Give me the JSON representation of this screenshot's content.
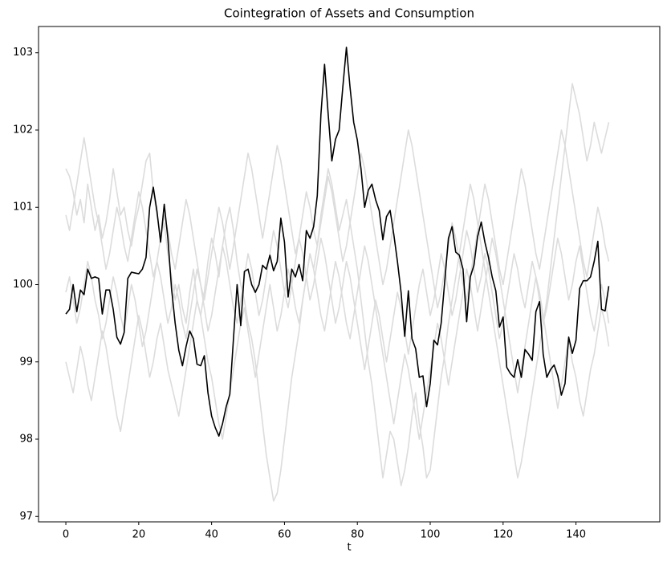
{
  "chart_data": {
    "type": "line",
    "title": "Cointegration of Assets and Consumption",
    "x_label": "t",
    "xlim": [
      -7.5,
      163
    ],
    "xticks": [
      0,
      20,
      40,
      60,
      80,
      100,
      120,
      140
    ],
    "ylim": [
      96.93,
      103.34
    ],
    "yticks": [
      97,
      98,
      99,
      100,
      101,
      102,
      103
    ],
    "x": [
      0,
      1,
      2,
      3,
      4,
      5,
      6,
      7,
      8,
      9,
      10,
      11,
      12,
      13,
      14,
      15,
      16,
      17,
      18,
      19,
      20,
      21,
      22,
      23,
      24,
      25,
      26,
      27,
      28,
      29,
      30,
      31,
      32,
      33,
      34,
      35,
      36,
      37,
      38,
      39,
      40,
      41,
      42,
      43,
      44,
      45,
      46,
      47,
      48,
      49,
      50,
      51,
      52,
      53,
      54,
      55,
      56,
      57,
      58,
      59,
      60,
      61,
      62,
      63,
      64,
      65,
      66,
      67,
      68,
      69,
      70,
      71,
      72,
      73,
      74,
      75,
      76,
      77,
      78,
      79,
      80,
      81,
      82,
      83,
      84,
      85,
      86,
      87,
      88,
      89,
      90,
      91,
      92,
      93,
      94,
      95,
      96,
      97,
      98,
      99,
      100,
      101,
      102,
      103,
      104,
      105,
      106,
      107,
      108,
      109,
      110,
      111,
      112,
      113,
      114,
      115,
      116,
      117,
      118,
      119,
      120,
      121,
      122,
      123,
      124,
      125,
      126,
      127,
      128,
      129,
      130,
      131,
      132,
      133,
      134,
      135,
      136,
      137,
      138,
      139,
      140,
      141,
      142,
      143,
      144,
      145,
      146,
      147,
      148,
      149
    ],
    "series": [
      {
        "color": "#dcdcdc",
        "values": [
          101.5,
          101.4,
          101.2,
          100.9,
          101.1,
          100.8,
          101.3,
          101.0,
          100.7,
          100.9,
          100.6,
          100.8,
          101.1,
          101.5,
          101.2,
          100.9,
          101.0,
          100.7,
          100.5,
          100.8,
          101.0,
          101.3,
          101.6,
          101.7,
          101.2,
          100.9,
          100.6,
          100.8,
          100.4,
          100.1,
          99.8,
          100.0,
          99.7,
          99.5,
          99.9,
          100.2,
          99.8,
          99.6,
          99.9,
          100.3,
          100.6,
          100.4,
          100.1,
          100.5,
          100.8,
          101.0,
          100.7,
          100.3,
          100.0,
          99.8,
          99.5,
          99.3,
          99.0,
          98.6,
          98.2,
          97.8,
          97.5,
          97.2,
          97.3,
          97.6,
          98.0,
          98.4,
          98.8,
          99.1,
          99.4,
          99.8,
          100.1,
          100.4,
          100.2,
          100.5,
          100.9,
          101.2,
          101.5,
          101.3,
          101.0,
          100.7,
          100.9,
          101.1,
          100.8,
          100.5,
          100.2,
          99.8,
          99.4,
          99.0,
          98.7,
          98.3,
          97.9,
          97.5,
          97.8,
          98.1,
          98.0,
          97.7,
          97.4,
          97.6,
          97.9,
          98.3,
          98.6,
          98.2,
          97.9,
          97.5,
          97.6,
          98.0,
          98.4,
          98.8,
          99.1,
          99.5,
          99.8,
          100.1,
          100.4,
          100.7,
          101.0,
          101.3,
          101.1,
          100.8,
          100.5,
          100.2,
          99.9,
          99.6,
          99.3,
          99.0,
          98.7,
          98.4,
          98.1,
          97.8,
          97.5,
          97.7,
          98.0,
          98.3,
          98.6,
          98.9,
          99.2,
          99.5,
          99.8,
          100.2,
          100.6,
          101.0,
          101.4,
          101.8,
          102.2,
          102.6,
          102.4,
          102.2,
          101.9,
          101.6,
          101.8,
          102.1,
          101.9,
          101.7,
          101.9,
          102.1
        ]
      },
      {
        "color": "#dcdcdc",
        "values": [
          99.0,
          98.8,
          98.6,
          98.9,
          99.2,
          99.0,
          98.7,
          98.5,
          98.8,
          99.1,
          99.4,
          99.2,
          98.9,
          98.6,
          98.3,
          98.1,
          98.4,
          98.7,
          99.0,
          99.3,
          99.6,
          99.4,
          99.1,
          98.8,
          99.0,
          99.3,
          99.5,
          99.2,
          98.9,
          98.7,
          98.5,
          98.3,
          98.6,
          98.9,
          99.2,
          99.5,
          99.8,
          99.6,
          99.3,
          99.0,
          98.8,
          98.5,
          98.2,
          98.0,
          98.3,
          98.6,
          98.9,
          99.2,
          99.5,
          99.7,
          99.4,
          99.1,
          98.8,
          99.1,
          99.4,
          99.7,
          100.0,
          99.7,
          99.4,
          99.6,
          99.9,
          100.2,
          100.0,
          99.7,
          99.5,
          99.8,
          100.1,
          100.4,
          100.2,
          99.9,
          99.6,
          99.4,
          99.7,
          100.0,
          100.3,
          100.1,
          99.8,
          99.5,
          99.3,
          99.6,
          99.9,
          100.2,
          100.5,
          100.3,
          100.0,
          99.7,
          99.4,
          99.1,
          98.8,
          98.5,
          98.2,
          98.5,
          98.8,
          99.1,
          98.9,
          98.6,
          98.3,
          98.0,
          98.3,
          98.6,
          98.9,
          99.2,
          99.5,
          99.3,
          99.0,
          98.7,
          99.0,
          99.3,
          99.6,
          99.9,
          100.2,
          100.0,
          99.7,
          99.4,
          99.7,
          100.0,
          100.3,
          100.6,
          100.4,
          100.1,
          99.8,
          99.5,
          99.2,
          98.9,
          98.6,
          98.9,
          99.2,
          99.5,
          99.8,
          100.1,
          99.9,
          99.6,
          99.3,
          99.0,
          98.7,
          98.4,
          98.7,
          99.0,
          99.3,
          99.0,
          98.8,
          98.5,
          98.3,
          98.6,
          98.9,
          99.1,
          99.4,
          99.7,
          99.5,
          99.2
        ]
      },
      {
        "color": "#dcdcdc",
        "values": [
          100.9,
          100.7,
          101.0,
          101.3,
          101.6,
          101.9,
          101.6,
          101.3,
          101.0,
          100.8,
          100.5,
          100.2,
          100.4,
          100.7,
          101.0,
          100.8,
          100.5,
          100.3,
          100.6,
          100.9,
          101.2,
          101.0,
          100.7,
          100.4,
          100.1,
          100.3,
          100.6,
          100.9,
          100.7,
          100.4,
          100.2,
          100.5,
          100.8,
          101.1,
          100.9,
          100.6,
          100.3,
          100.0,
          99.8,
          100.1,
          100.4,
          100.7,
          101.0,
          100.8,
          100.5,
          100.2,
          100.5,
          100.8,
          101.1,
          101.4,
          101.7,
          101.5,
          101.2,
          100.9,
          100.6,
          100.9,
          101.2,
          101.5,
          101.8,
          101.6,
          101.3,
          101.0,
          100.7,
          100.4,
          100.6,
          100.9,
          101.2,
          101.0,
          100.7,
          100.5,
          100.8,
          101.1,
          101.4,
          101.2,
          100.9,
          100.6,
          100.3,
          100.5,
          100.8,
          101.1,
          101.4,
          101.7,
          101.5,
          101.2,
          100.9,
          100.6,
          100.3,
          100.0,
          100.2,
          100.5,
          100.8,
          101.1,
          101.4,
          101.7,
          102.0,
          101.8,
          101.5,
          101.2,
          100.9,
          100.6,
          100.3,
          100.0,
          99.7,
          99.9,
          100.2,
          100.5,
          100.8,
          100.6,
          100.3,
          100.0,
          99.8,
          100.1,
          100.4,
          100.7,
          101.0,
          101.3,
          101.1,
          100.8,
          100.5,
          100.2,
          100.0,
          100.3,
          100.6,
          100.9,
          101.2,
          101.5,
          101.3,
          101.0,
          100.7,
          100.4,
          100.2,
          100.5,
          100.8,
          101.1,
          101.4,
          101.7,
          102.0,
          101.8,
          101.5,
          101.2,
          100.9,
          100.6,
          100.3,
          100.1,
          100.4,
          100.7,
          101.0,
          100.8,
          100.5,
          100.3
        ]
      },
      {
        "color": "#dcdcdc",
        "values": [
          99.9,
          100.1,
          99.8,
          99.5,
          99.7,
          100.0,
          100.3,
          100.1,
          99.8,
          99.6,
          99.3,
          99.5,
          99.8,
          100.1,
          99.9,
          99.6,
          99.4,
          99.7,
          100.0,
          99.8,
          99.5,
          99.2,
          99.4,
          99.7,
          100.0,
          100.3,
          100.1,
          99.8,
          99.5,
          99.7,
          100.0,
          99.8,
          99.5,
          99.3,
          99.6,
          99.9,
          100.2,
          100.0,
          99.7,
          99.4,
          99.6,
          99.9,
          100.2,
          100.5,
          100.3,
          100.0,
          99.7,
          99.5,
          99.8,
          100.1,
          100.4,
          100.2,
          99.9,
          99.6,
          99.8,
          100.1,
          100.4,
          100.7,
          100.5,
          100.2,
          99.9,
          99.7,
          100.0,
          100.3,
          100.6,
          100.4,
          100.1,
          99.8,
          100.0,
          100.3,
          100.6,
          100.4,
          100.1,
          99.8,
          99.5,
          99.7,
          100.0,
          100.3,
          100.1,
          99.8,
          99.5,
          99.2,
          98.9,
          99.2,
          99.5,
          99.8,
          99.6,
          99.3,
          99.0,
          99.3,
          99.6,
          99.9,
          99.7,
          99.4,
          99.1,
          99.4,
          99.7,
          100.0,
          100.2,
          99.9,
          99.6,
          99.8,
          100.1,
          100.4,
          100.2,
          99.9,
          99.6,
          99.8,
          100.1,
          100.4,
          100.7,
          100.5,
          100.2,
          99.9,
          100.1,
          100.4,
          100.2,
          99.9,
          99.6,
          99.3,
          99.5,
          99.8,
          100.1,
          100.4,
          100.2,
          99.9,
          99.7,
          100.0,
          100.3,
          100.1,
          99.8,
          99.5,
          99.7,
          100.0,
          100.3,
          100.6,
          100.4,
          100.1,
          99.8,
          100.0,
          100.3,
          100.5,
          100.2,
          99.9,
          99.6,
          99.4,
          99.7,
          100.0,
          99.8,
          99.5
        ]
      },
      {
        "color": "#000000",
        "values": [
          99.62,
          99.68,
          100.0,
          99.65,
          99.93,
          99.87,
          100.2,
          100.08,
          100.1,
          100.08,
          99.62,
          99.93,
          99.93,
          99.68,
          99.32,
          99.23,
          99.38,
          100.08,
          100.16,
          100.15,
          100.14,
          100.2,
          100.35,
          101.0,
          101.26,
          100.95,
          100.55,
          101.04,
          100.6,
          99.95,
          99.5,
          99.15,
          98.95,
          99.2,
          99.4,
          99.3,
          98.97,
          98.95,
          99.08,
          98.6,
          98.3,
          98.15,
          98.04,
          98.2,
          98.42,
          98.58,
          99.3,
          100.0,
          99.47,
          100.17,
          100.2,
          100.0,
          99.9,
          100.0,
          100.25,
          100.2,
          100.38,
          100.18,
          100.3,
          100.86,
          100.55,
          99.84,
          100.2,
          100.1,
          100.26,
          100.05,
          100.7,
          100.6,
          100.75,
          101.15,
          102.2,
          102.85,
          102.2,
          101.6,
          101.88,
          102.0,
          102.55,
          103.07,
          102.55,
          102.1,
          101.87,
          101.5,
          101.0,
          101.22,
          101.3,
          101.1,
          100.96,
          100.58,
          100.88,
          100.96,
          100.65,
          100.3,
          99.9,
          99.33,
          99.92,
          99.3,
          99.17,
          98.8,
          98.82,
          98.42,
          98.72,
          99.28,
          99.22,
          99.5,
          100.05,
          100.6,
          100.75,
          100.42,
          100.38,
          100.2,
          99.52,
          100.1,
          100.25,
          100.62,
          100.81,
          100.55,
          100.35,
          100.1,
          99.92,
          99.45,
          99.58,
          98.93,
          98.85,
          98.8,
          99.03,
          98.8,
          99.16,
          99.1,
          99.02,
          99.65,
          99.78,
          99.1,
          98.8,
          98.9,
          98.96,
          98.82,
          98.57,
          98.72,
          99.32,
          99.11,
          99.28,
          99.95,
          100.05,
          100.05,
          100.1,
          100.3,
          100.56,
          99.68,
          99.66,
          99.98
        ]
      }
    ]
  }
}
